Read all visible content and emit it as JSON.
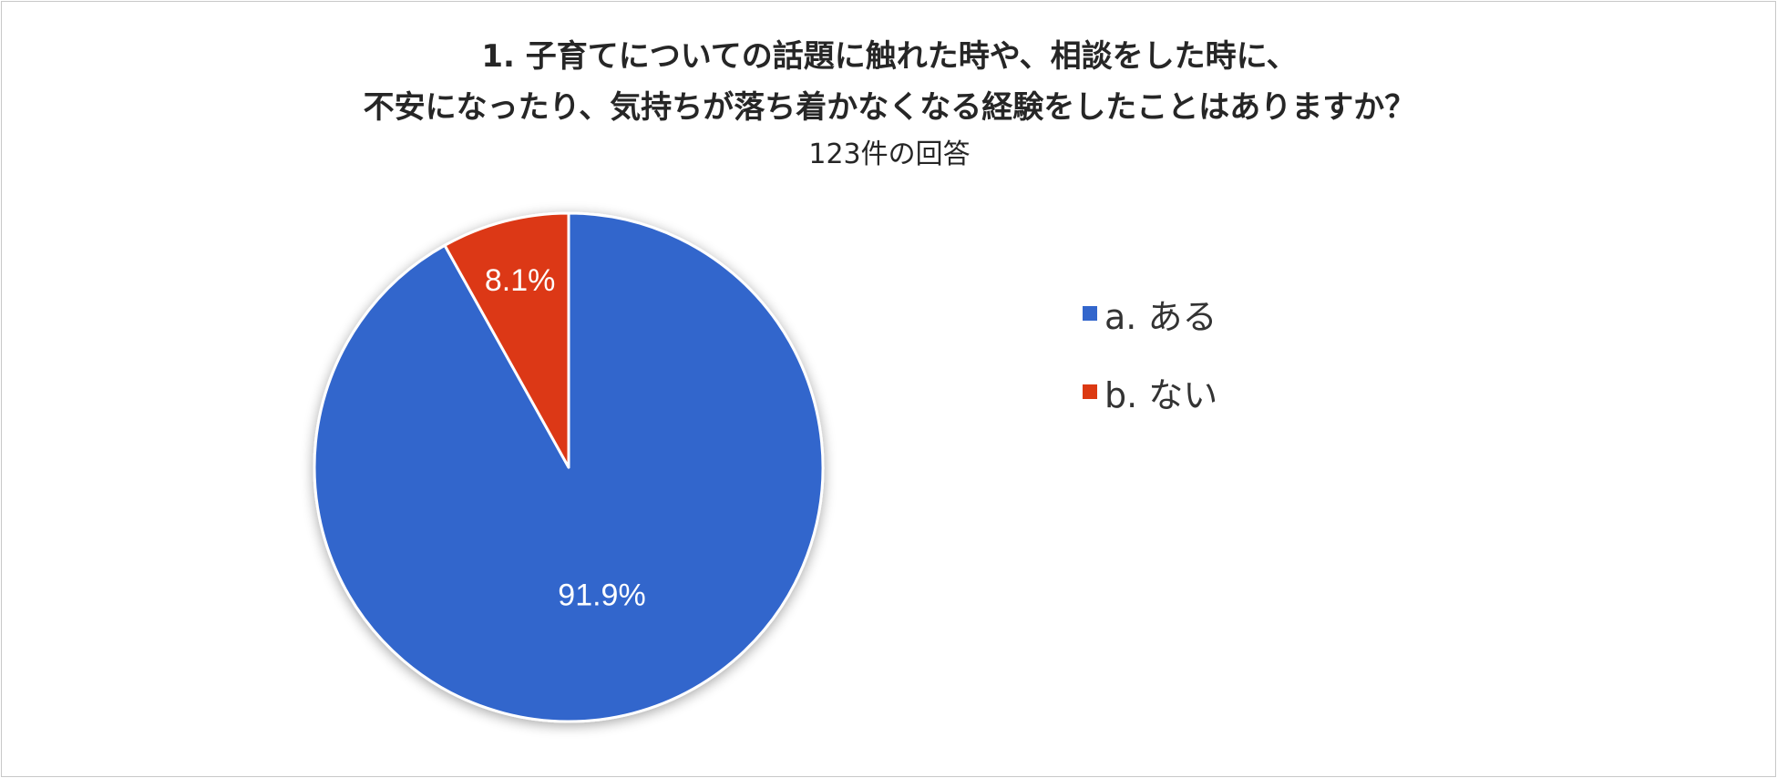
{
  "chart_data": {
    "type": "pie",
    "title_lines": [
      "1. 子育てについての話題に触れた時や、相談をした時に、",
      "不安になったり、気持ちが落ち着かなくなる経験をしたことはありますか？"
    ],
    "subtitle": "123件の回答",
    "categories": [
      "a. ある",
      "b. ない"
    ],
    "values": [
      91.9,
      8.1
    ],
    "data_labels": [
      "91.9%",
      "8.1%"
    ],
    "colors": [
      "#3366cc",
      "#dc3912"
    ],
    "legend_position": "right",
    "start_angle": "top, clockwise"
  }
}
